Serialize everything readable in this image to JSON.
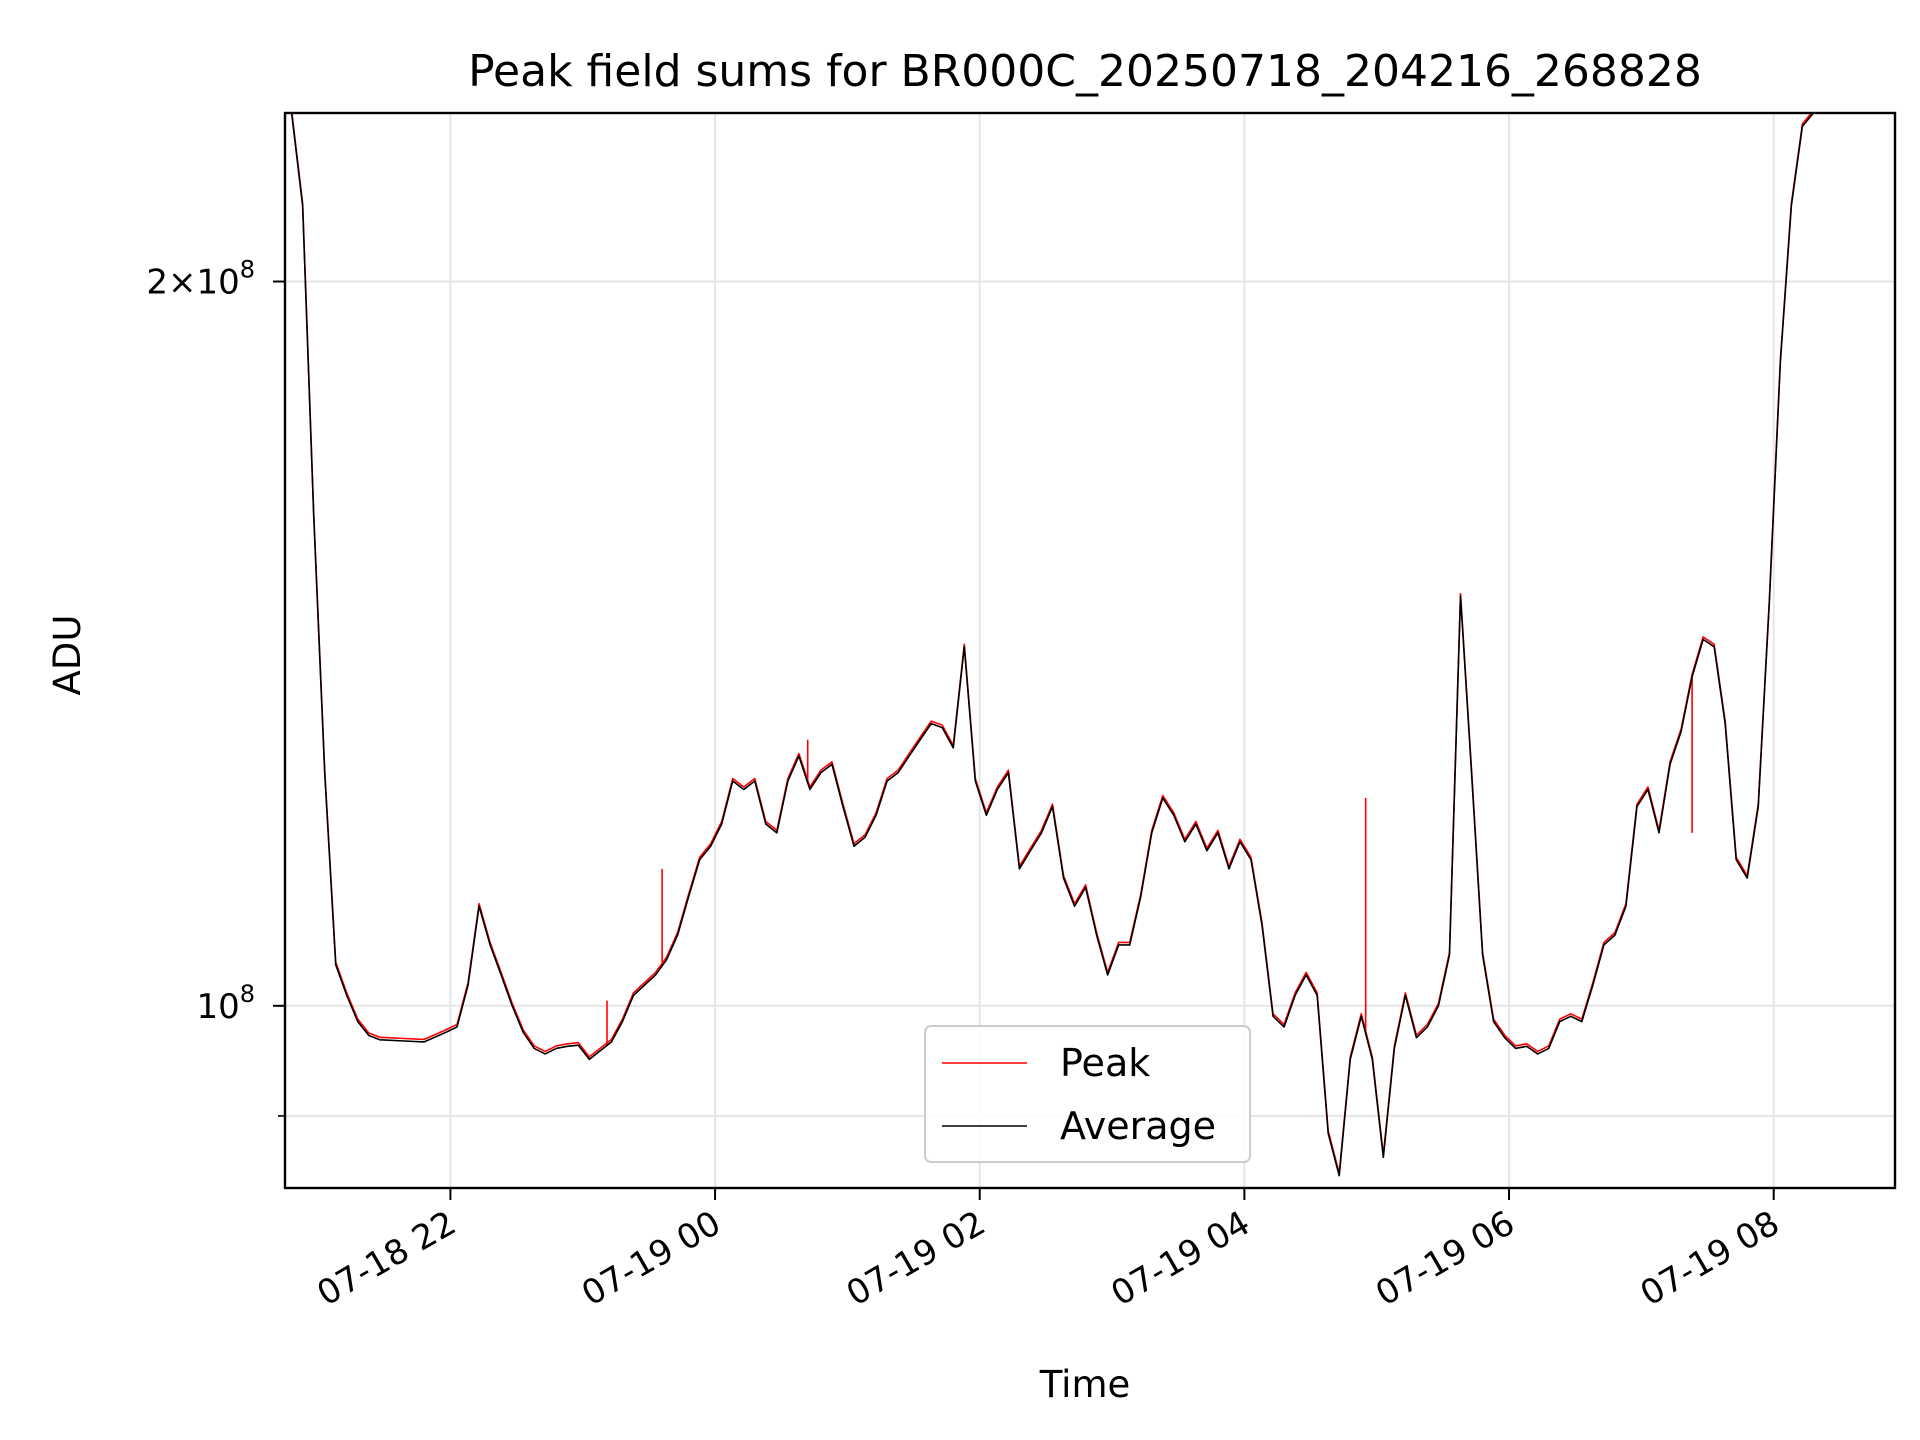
{
  "chart_data": {
    "type": "line",
    "title": "Peak field sums for BR000C_20250718_204216_268828",
    "xlabel": "Time",
    "ylabel": "ADU",
    "x_tick_labels": [
      "07-18 22",
      "07-19 00",
      "07-19 02",
      "07-19 04",
      "07-19 06",
      "07-19 08"
    ],
    "x_ticks": [
      "2025-07-18 22:00",
      "2025-07-19 00:00",
      "2025-07-19 02:00",
      "2025-07-19 04:00",
      "2025-07-19 06:00",
      "2025-07-19 08:00"
    ],
    "xlim": [
      "2025-07-18 20:45",
      "2025-07-19 08:55"
    ],
    "yscale": "log",
    "ylim": [
      84000000,
      235000000
    ],
    "y_major_ticks": [
      100000000,
      200000000
    ],
    "y_major_tick_labels": [
      "10^8",
      "2×10^8"
    ],
    "y_minor_ticks": [
      90000000
    ],
    "grid": true,
    "legend": {
      "location": "lower center",
      "entries": [
        "Peak",
        "Average"
      ]
    },
    "series": [
      {
        "name": "Average",
        "color": "#000000",
        "x": [
          "2025-07-18 20:48",
          "2025-07-18 20:53",
          "2025-07-18 20:58",
          "2025-07-18 21:03",
          "2025-07-18 21:08",
          "2025-07-18 21:13",
          "2025-07-18 21:18",
          "2025-07-18 21:23",
          "2025-07-18 21:28",
          "2025-07-18 21:38",
          "2025-07-18 21:48",
          "2025-07-18 21:58",
          "2025-07-18 22:03",
          "2025-07-18 22:08",
          "2025-07-18 22:13",
          "2025-07-18 22:18",
          "2025-07-18 22:23",
          "2025-07-18 22:28",
          "2025-07-18 22:33",
          "2025-07-18 22:38",
          "2025-07-18 22:43",
          "2025-07-18 22:48",
          "2025-07-18 22:53",
          "2025-07-18 22:58",
          "2025-07-18 23:03",
          "2025-07-18 23:08",
          "2025-07-18 23:13",
          "2025-07-18 23:18",
          "2025-07-18 23:23",
          "2025-07-18 23:28",
          "2025-07-18 23:33",
          "2025-07-18 23:38",
          "2025-07-18 23:43",
          "2025-07-18 23:48",
          "2025-07-18 23:53",
          "2025-07-18 23:58",
          "2025-07-19 00:03",
          "2025-07-19 00:08",
          "2025-07-19 00:13",
          "2025-07-19 00:18",
          "2025-07-19 00:23",
          "2025-07-19 00:28",
          "2025-07-19 00:33",
          "2025-07-19 00:38",
          "2025-07-19 00:43",
          "2025-07-19 00:48",
          "2025-07-19 00:53",
          "2025-07-19 00:58",
          "2025-07-19 01:03",
          "2025-07-19 01:08",
          "2025-07-19 01:13",
          "2025-07-19 01:18",
          "2025-07-19 01:23",
          "2025-07-19 01:28",
          "2025-07-19 01:33",
          "2025-07-19 01:38",
          "2025-07-19 01:43",
          "2025-07-19 01:48",
          "2025-07-19 01:53",
          "2025-07-19 01:58",
          "2025-07-19 02:03",
          "2025-07-19 02:08",
          "2025-07-19 02:13",
          "2025-07-19 02:18",
          "2025-07-19 02:23",
          "2025-07-19 02:28",
          "2025-07-19 02:33",
          "2025-07-19 02:38",
          "2025-07-19 02:43",
          "2025-07-19 02:48",
          "2025-07-19 02:53",
          "2025-07-19 02:58",
          "2025-07-19 03:03",
          "2025-07-19 03:08",
          "2025-07-19 03:13",
          "2025-07-19 03:18",
          "2025-07-19 03:23",
          "2025-07-19 03:28",
          "2025-07-19 03:33",
          "2025-07-19 03:38",
          "2025-07-19 03:43",
          "2025-07-19 03:48",
          "2025-07-19 03:53",
          "2025-07-19 03:58",
          "2025-07-19 04:03",
          "2025-07-19 04:08",
          "2025-07-19 04:13",
          "2025-07-19 04:18",
          "2025-07-19 04:23",
          "2025-07-19 04:28",
          "2025-07-19 04:33",
          "2025-07-19 04:38",
          "2025-07-19 04:43",
          "2025-07-19 04:48",
          "2025-07-19 04:53",
          "2025-07-19 04:58",
          "2025-07-19 05:03",
          "2025-07-19 05:08",
          "2025-07-19 05:13",
          "2025-07-19 05:18",
          "2025-07-19 05:23",
          "2025-07-19 05:28",
          "2025-07-19 05:33",
          "2025-07-19 05:38",
          "2025-07-19 05:43",
          "2025-07-19 05:48",
          "2025-07-19 05:53",
          "2025-07-19 05:58",
          "2025-07-19 06:03",
          "2025-07-19 06:08",
          "2025-07-19 06:13",
          "2025-07-19 06:18",
          "2025-07-19 06:23",
          "2025-07-19 06:28",
          "2025-07-19 06:33",
          "2025-07-19 06:38",
          "2025-07-19 06:43",
          "2025-07-19 06:48",
          "2025-07-19 06:53",
          "2025-07-19 06:58",
          "2025-07-19 07:03",
          "2025-07-19 07:08",
          "2025-07-19 07:13",
          "2025-07-19 07:18",
          "2025-07-19 07:23",
          "2025-07-19 07:28",
          "2025-07-19 07:33",
          "2025-07-19 07:38",
          "2025-07-19 07:43",
          "2025-07-19 07:48",
          "2025-07-19 07:53",
          "2025-07-19 07:58",
          "2025-07-19 08:03",
          "2025-07-19 08:08",
          "2025-07-19 08:13",
          "2025-07-19 08:18",
          "2025-07-19 08:23",
          "2025-07-19 08:28",
          "2025-07-19 08:33",
          "2025-07-19 08:38",
          "2025-07-19 08:43",
          "2025-07-19 08:48",
          "2025-07-19 08:51"
        ],
        "y": [
          235000000,
          215000000,
          160000000,
          125000000,
          104000000,
          101000000,
          98500000,
          97200000,
          96800000,
          96700000,
          96600000,
          97500000,
          98000000,
          102000000,
          110000000,
          106000000,
          103000000,
          100000000,
          97500000,
          96000000,
          95500000,
          96000000,
          96200000,
          96300000,
          95000000,
          95800000,
          96600000,
          98500000,
          101000000,
          102000000,
          103000000,
          104500000,
          107000000,
          111000000,
          115000000,
          116500000,
          119000000,
          124000000,
          123000000,
          124000000,
          119000000,
          118000000,
          124000000,
          127000000,
          123000000,
          125000000,
          126000000,
          121000000,
          116500000,
          117500000,
          120000000,
          124000000,
          125000000,
          127000000,
          129000000,
          131000000,
          130500000,
          128000000,
          141000000,
          124000000,
          120000000,
          123000000,
          125000000,
          114000000,
          116000000,
          118000000,
          121000000,
          113000000,
          110000000,
          112000000,
          107000000,
          103000000,
          106000000,
          106000000,
          111000000,
          118000000,
          122000000,
          120000000,
          117000000,
          119000000,
          116000000,
          118000000,
          114000000,
          117000000,
          115000000,
          108000000,
          99000000,
          98000000,
          101000000,
          103000000,
          101000000,
          88500000,
          85000000,
          95000000,
          99000000,
          95000000,
          86500000,
          96000000,
          101000000,
          97000000,
          98000000,
          100000000,
          105000000,
          148000000,
          125000000,
          105000000,
          98500000,
          97000000,
          96000000,
          96200000,
          95500000,
          96000000,
          98500000,
          99000000,
          98500000,
          102000000,
          106000000,
          107000000,
          110000000,
          121000000,
          123000000,
          118000000,
          126000000,
          130000000,
          137000000,
          142000000,
          141000000,
          131000000,
          115000000,
          113000000,
          121000000,
          147000000,
          185000000,
          215000000,
          232000000,
          235000000,
          235000000,
          235000000,
          235000000,
          235000000,
          235000000,
          235000000,
          235000000
        ]
      },
      {
        "name": "Peak",
        "color": "#ff0000",
        "spikes": [
          {
            "x": "2025-07-18 23:11",
            "y": 100500000
          },
          {
            "x": "2025-07-18 23:36",
            "y": 114000000
          },
          {
            "x": "2025-07-19 00:42",
            "y": 129000000
          },
          {
            "x": "2025-07-19 04:55",
            "y": 122000000
          },
          {
            "x": "2025-07-19 07:23",
            "y": 118000000
          }
        ]
      }
    ]
  }
}
